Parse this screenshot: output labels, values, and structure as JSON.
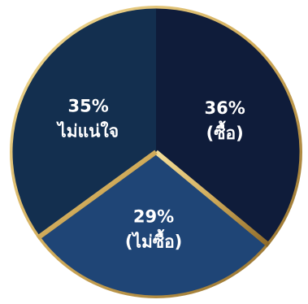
{
  "chart_data": {
    "type": "pie",
    "start_angle_deg": 0,
    "direction": "clockwise",
    "slices": [
      {
        "value": 36,
        "percent_label": "36%",
        "label": "(ซื้อ)",
        "color": "#0f1c3a"
      },
      {
        "value": 29,
        "percent_label": "29%",
        "label": "(ไม่ซื้อ)",
        "color": "#1f4576"
      },
      {
        "value": 35,
        "percent_label": "35%",
        "label": "ไม่แน่ใจ",
        "color": "#132f4f"
      }
    ],
    "colors": {
      "border_light": "#f4df9a",
      "border_mid": "#d2ad5c",
      "border_dark": "#8e6a29"
    },
    "legend": "none",
    "grid": false
  }
}
